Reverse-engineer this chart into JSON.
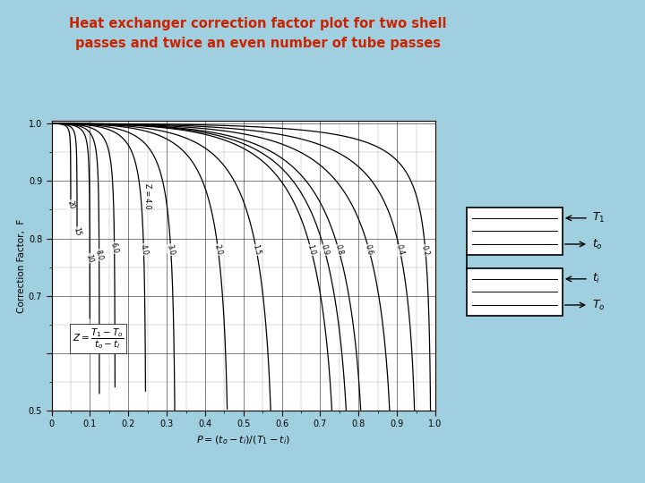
{
  "title_line1": "Heat exchanger correction factor plot for two shell",
  "title_line2": "passes and twice an even number of tube passes",
  "title_color": "#cc2200",
  "background_color": "#a0cfe0",
  "plot_bg": "#ffffff",
  "ylabel": "Correction Factor,  F",
  "xlabel": "P = (t₂ − t₁)/(T₁ − t₂)",
  "xlim": [
    0.0,
    1.0
  ],
  "ylim": [
    0.5,
    1.005
  ],
  "yticks": [
    0.5,
    0.6,
    0.7,
    0.8,
    0.9,
    1.0
  ],
  "xticks": [
    0.0,
    0.1,
    0.2,
    0.3,
    0.4,
    0.5,
    0.6,
    0.7,
    0.8,
    0.9,
    1.0
  ],
  "xtick_labels": [
    "0",
    "0.1",
    "0.2",
    "0.3",
    "0.4",
    "0.5",
    "0.6",
    "0.7",
    "0.8",
    "0.9",
    "1.0"
  ],
  "ytick_labels": [
    "0.5",
    "",
    "0.7",
    "0.8",
    "0.9",
    "1.0"
  ],
  "Z_values": [
    20.0,
    15.0,
    10.0,
    8.0,
    6.0,
    4.0,
    3.0,
    2.0,
    1.5,
    1.0,
    0.9,
    0.8,
    0.6,
    0.4,
    0.2
  ],
  "Z_labels": [
    "20",
    "15",
    "10",
    "8.0",
    "6.0",
    "4.0",
    "3.0",
    "2.0",
    "1.5",
    "1.0",
    "0.9",
    "0.8",
    "0.6",
    "0.4",
    "0.2"
  ],
  "line_color": "#000000"
}
